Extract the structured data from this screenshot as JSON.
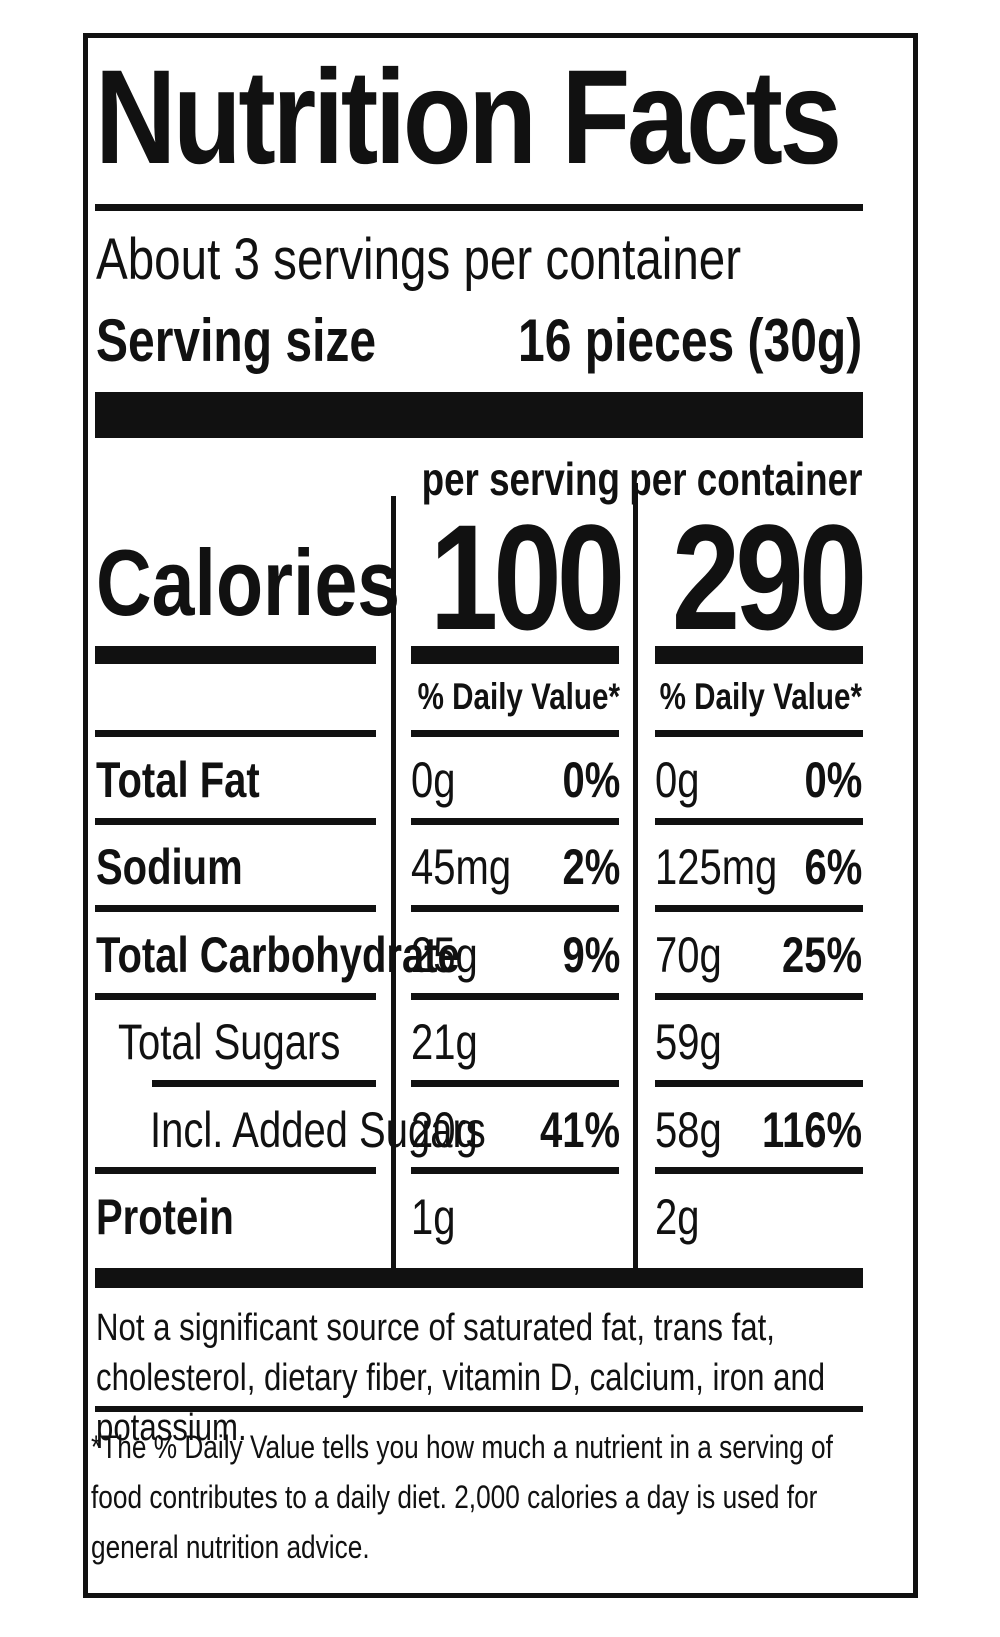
{
  "title": "Nutrition Facts",
  "servings_per_container": "About 3 servings per container",
  "serving_size_label": "Serving size",
  "serving_size_value": "16 pieces (30g)",
  "columns": [
    {
      "header": "per serving",
      "calories": "100",
      "dv_header": "% Daily Value*"
    },
    {
      "header": "per container",
      "calories": "290",
      "dv_header": "% Daily Value*"
    }
  ],
  "calories_label": "Calories",
  "nutrients": [
    {
      "name": "Total Fat",
      "serving_amount": "0g",
      "serving_dv": "0%",
      "container_amount": "0g",
      "container_dv": "0%"
    },
    {
      "name": "Sodium",
      "serving_amount": "45mg",
      "serving_dv": "2%",
      "container_amount": "125mg",
      "container_dv": "6%"
    },
    {
      "name": "Total Carbohydrate",
      "serving_amount": "25g",
      "serving_dv": "9%",
      "container_amount": "70g",
      "container_dv": "25%"
    },
    {
      "name": "Total Sugars",
      "serving_amount": "21g",
      "serving_dv": "",
      "container_amount": "59g",
      "container_dv": ""
    },
    {
      "name": "Incl. Added Sugars",
      "serving_amount": "20g",
      "serving_dv": "41%",
      "container_amount": "58g",
      "container_dv": "116%"
    },
    {
      "name": "Protein",
      "serving_amount": "1g",
      "serving_dv": "",
      "container_amount": "2g",
      "container_dv": ""
    }
  ],
  "footnote_insignificant": "Not a significant source of saturated fat, trans fat, cholesterol, dietary fiber, vitamin D, calcium, iron and potassium.",
  "footnote_daily_value": "*The % Daily Value tells you how much a nutrient in a serving of food contributes to a daily diet. 2,000 calories a day is used for general nutrition advice."
}
